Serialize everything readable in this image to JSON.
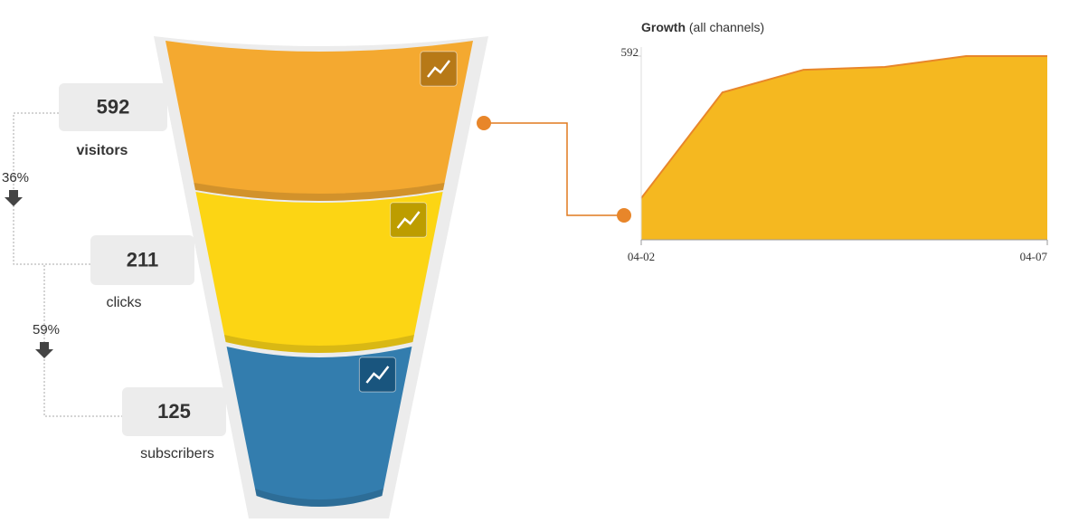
{
  "chart_data": [
    {
      "type": "funnel",
      "categories": [
        "visitors",
        "clicks",
        "subscribers"
      ],
      "values": [
        592,
        211,
        125
      ],
      "colors": [
        "#f4a21f",
        "#fcd200",
        "#2272a8"
      ],
      "rates": [
        36,
        59
      ],
      "rate_labels": [
        "36%",
        "59%"
      ]
    },
    {
      "type": "area",
      "title": "Growth",
      "subtitle": "(all channels)",
      "categories": [
        "04-02",
        null,
        null,
        null,
        null,
        "04-07"
      ],
      "values": [
        134,
        475,
        548,
        557,
        592,
        592
      ],
      "color": "#f5b820",
      "line_color": "#e8862a",
      "ylim": [
        0,
        592
      ],
      "yticks": [
        592
      ]
    }
  ]
}
